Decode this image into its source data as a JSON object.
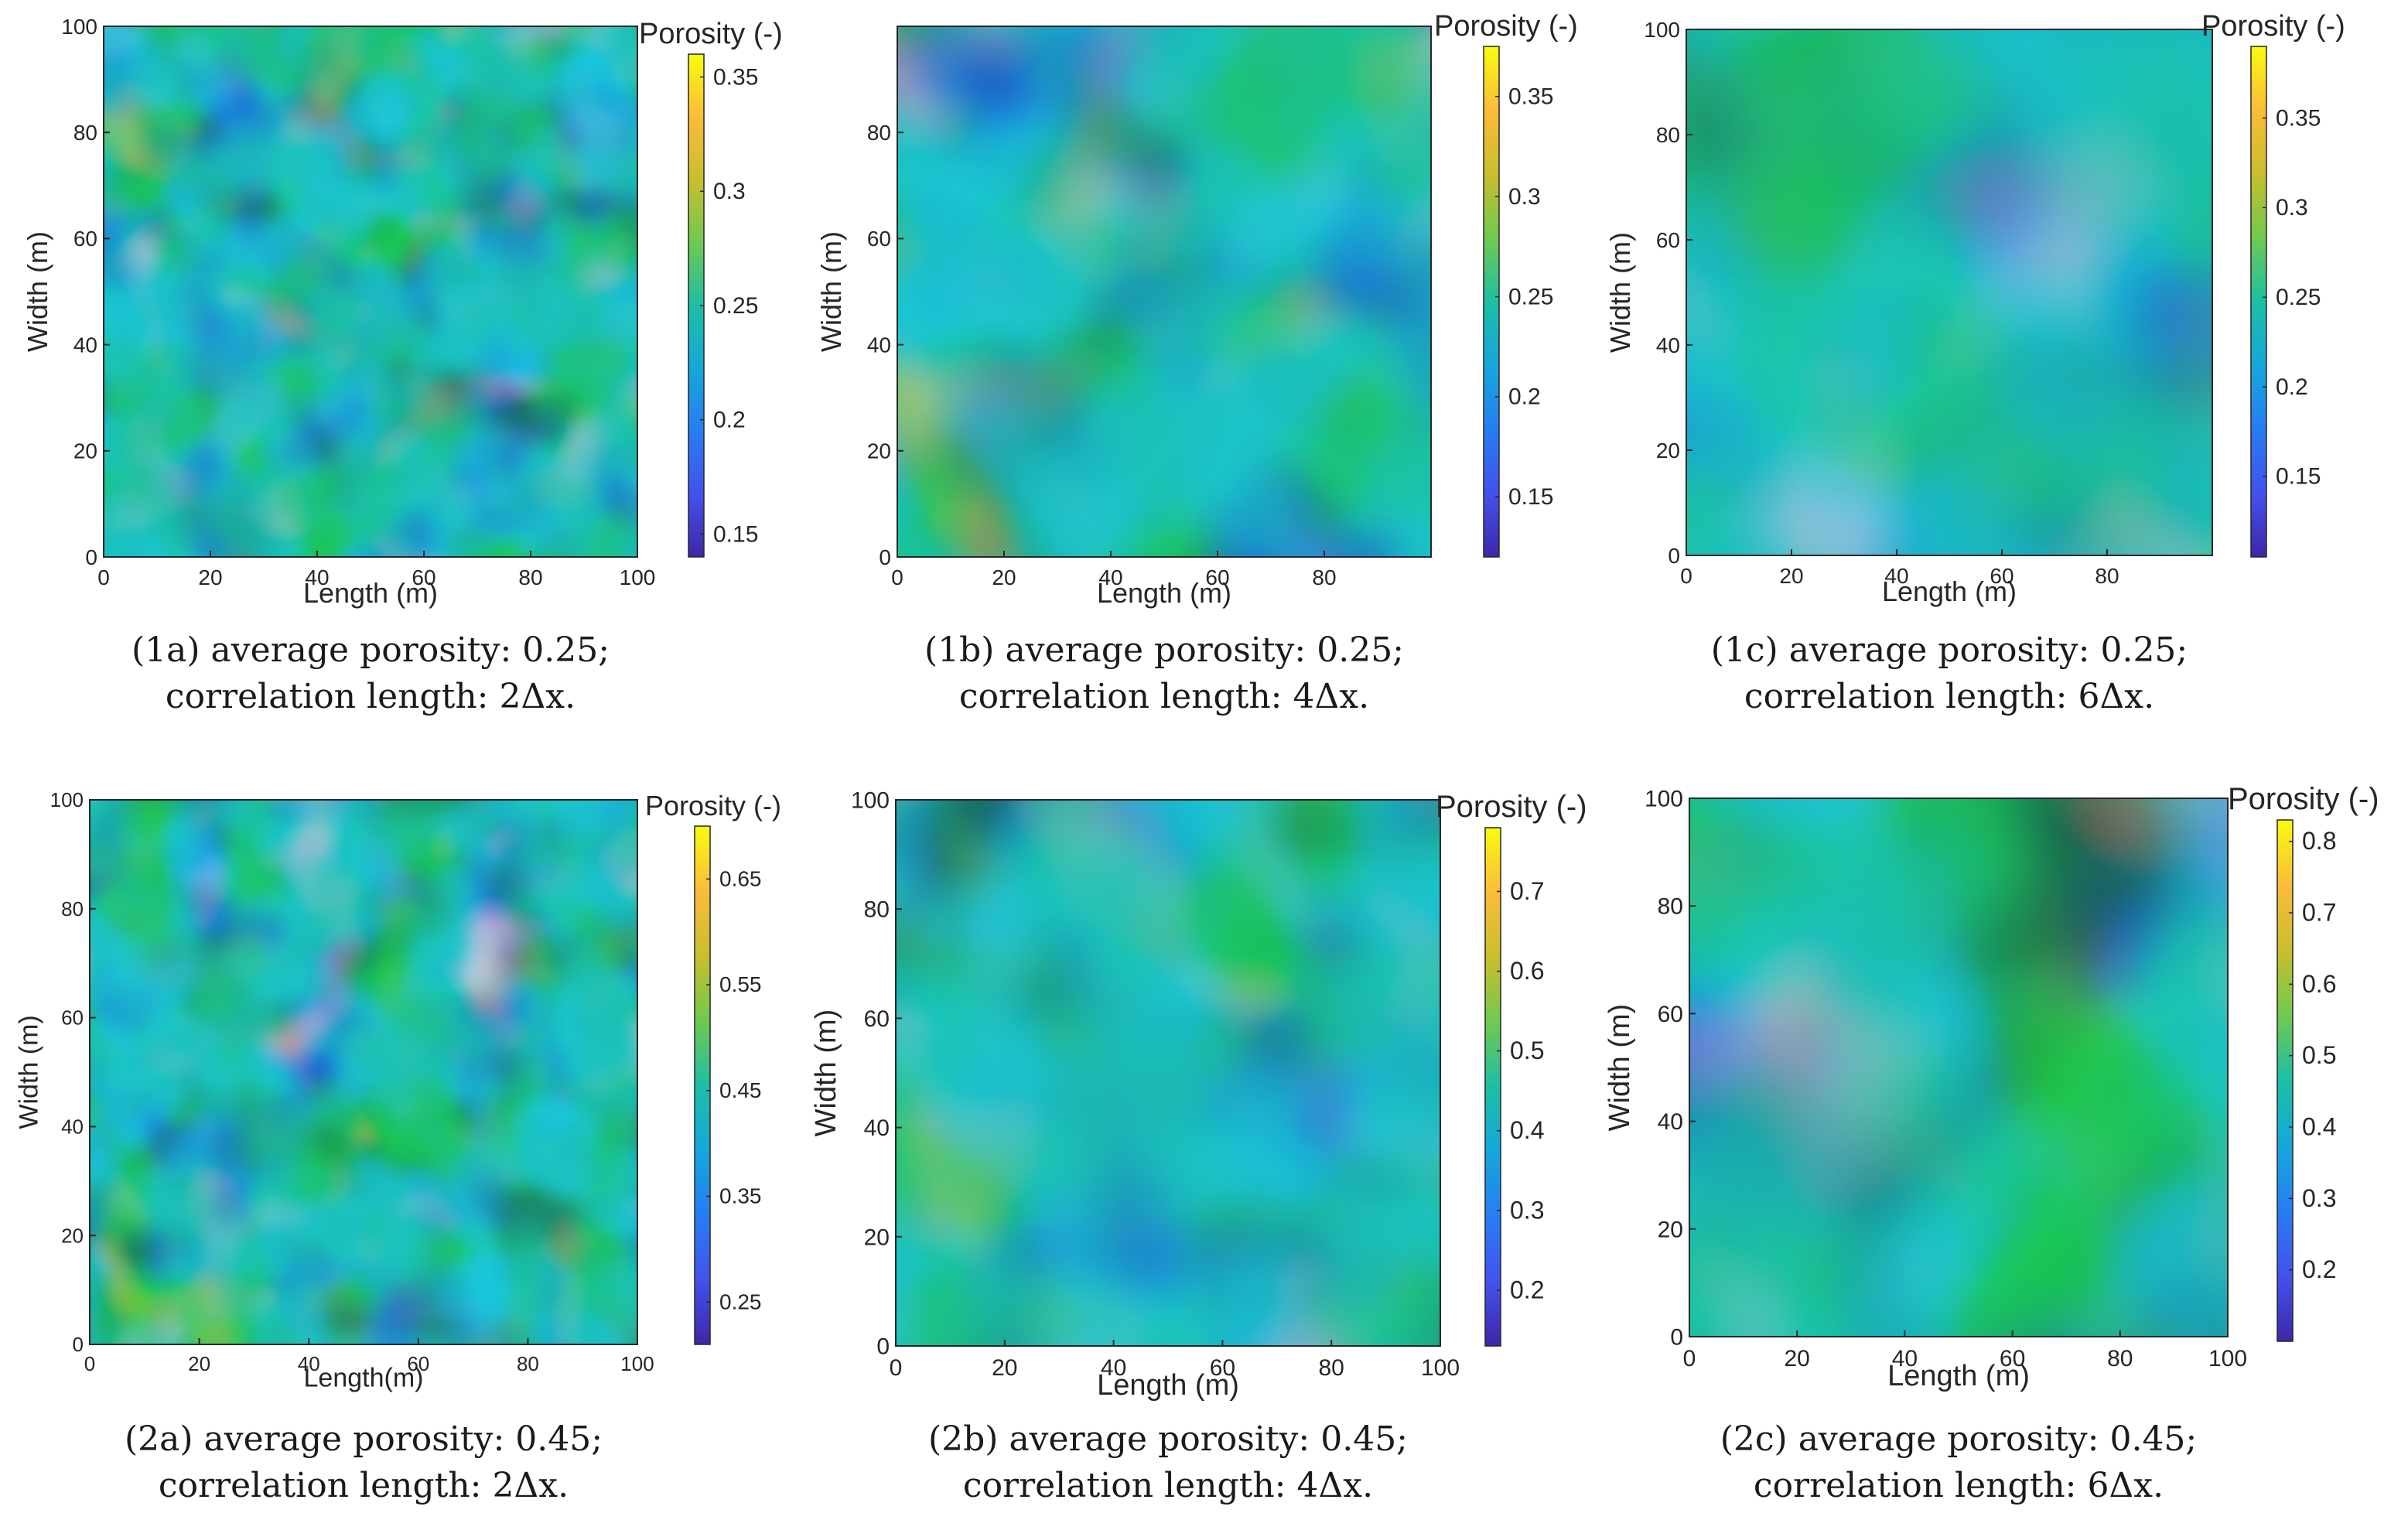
{
  "chart_data": [
    {
      "id": "1a",
      "type": "heatmap",
      "xlabel": "Length (m)",
      "ylabel": "Width (m)",
      "xlim": [
        0,
        100
      ],
      "ylim": [
        0,
        100
      ],
      "xticks": [
        "0",
        "20",
        "40",
        "60",
        "80",
        "100"
      ],
      "yticks": [
        "0",
        "20",
        "40",
        "60",
        "80",
        "100"
      ],
      "colorbar": {
        "title": "Porosity (-)",
        "range": [
          0.14,
          0.36
        ],
        "ticks": [
          "0.15",
          "0.2",
          "0.25",
          "0.3",
          "0.35"
        ]
      },
      "average_porosity": 0.25,
      "correlation_length_dx": 2,
      "caption": [
        "(1a) average porosity:  0.25;",
        "correlation length:  2Δx."
      ]
    },
    {
      "id": "1b",
      "type": "heatmap",
      "xlabel": "Length (m)",
      "ylabel": "Width (m)",
      "xlim": [
        0,
        100
      ],
      "ylim": [
        0,
        100
      ],
      "xticks": [
        "0",
        "20",
        "40",
        "60",
        "80"
      ],
      "yticks": [
        "0",
        "20",
        "40",
        "60",
        "80"
      ],
      "colorbar": {
        "title": "Porosity (-)",
        "range": [
          0.12,
          0.375
        ],
        "ticks": [
          "0.15",
          "0.2",
          "0.25",
          "0.3",
          "0.35"
        ]
      },
      "average_porosity": 0.25,
      "correlation_length_dx": 4,
      "caption": [
        "(1b) average porosity:  0.25;",
        "correlation length:  4Δx."
      ]
    },
    {
      "id": "1c",
      "type": "heatmap",
      "xlabel": "Length (m)",
      "ylabel": "Width (m)",
      "xlim": [
        0,
        100
      ],
      "ylim": [
        0,
        100
      ],
      "xticks": [
        "0",
        "20",
        "40",
        "60",
        "80"
      ],
      "yticks": [
        "0",
        "20",
        "40",
        "60",
        "80",
        "100"
      ],
      "colorbar": {
        "title": "Porosity (-)",
        "range": [
          0.105,
          0.39
        ],
        "ticks": [
          "0.15",
          "0.2",
          "0.25",
          "0.3",
          "0.35"
        ]
      },
      "average_porosity": 0.25,
      "correlation_length_dx": 6,
      "caption": [
        "(1c) average porosity:  0.25;",
        "correlation length:  6Δx."
      ]
    },
    {
      "id": "2a",
      "type": "heatmap",
      "xlabel": "Length(m)",
      "ylabel": "Width (m)",
      "xlim": [
        0,
        100
      ],
      "ylim": [
        0,
        100
      ],
      "xticks": [
        "0",
        "20",
        "40",
        "60",
        "80",
        "100"
      ],
      "yticks": [
        "0",
        "20",
        "40",
        "60",
        "80",
        "100"
      ],
      "colorbar": {
        "title": "Porosity (-)",
        "range": [
          0.21,
          0.7
        ],
        "ticks": [
          "0.25",
          "0.35",
          "0.45",
          "0.55",
          "0.65"
        ]
      },
      "average_porosity": 0.45,
      "correlation_length_dx": 2,
      "caption": [
        "(2a) average porosity:  0.45;",
        "correlation length:  2Δx."
      ]
    },
    {
      "id": "2b",
      "type": "heatmap",
      "xlabel": "Length (m)",
      "ylabel": "Width (m)",
      "xlim": [
        0,
        100
      ],
      "ylim": [
        0,
        100
      ],
      "xticks": [
        "0",
        "20",
        "40",
        "60",
        "80",
        "100"
      ],
      "yticks": [
        "0",
        "20",
        "40",
        "60",
        "80",
        "100"
      ],
      "colorbar": {
        "title": "Porosity (-)",
        "range": [
          0.13,
          0.78
        ],
        "ticks": [
          "0.2",
          "0.3",
          "0.4",
          "0.5",
          "0.6",
          "0.7"
        ]
      },
      "average_porosity": 0.45,
      "correlation_length_dx": 4,
      "caption": [
        "(2b) average porosity:  0.45;",
        "correlation length:  4Δx."
      ]
    },
    {
      "id": "2c",
      "type": "heatmap",
      "xlabel": "Length (m)",
      "ylabel": "Width (m)",
      "xlim": [
        0,
        100
      ],
      "ylim": [
        0,
        100
      ],
      "xticks": [
        "0",
        "20",
        "40",
        "60",
        "80",
        "100"
      ],
      "yticks": [
        "0",
        "20",
        "40",
        "60",
        "80",
        "100"
      ],
      "colorbar": {
        "title": "Porosity (-)",
        "range": [
          0.1,
          0.83
        ],
        "ticks": [
          "0.2",
          "0.3",
          "0.4",
          "0.5",
          "0.6",
          "0.7",
          "0.8"
        ]
      },
      "average_porosity": 0.45,
      "correlation_length_dx": 6,
      "caption": [
        "(2c) average porosity:  0.45;",
        "correlation length:  6Δx."
      ]
    }
  ]
}
